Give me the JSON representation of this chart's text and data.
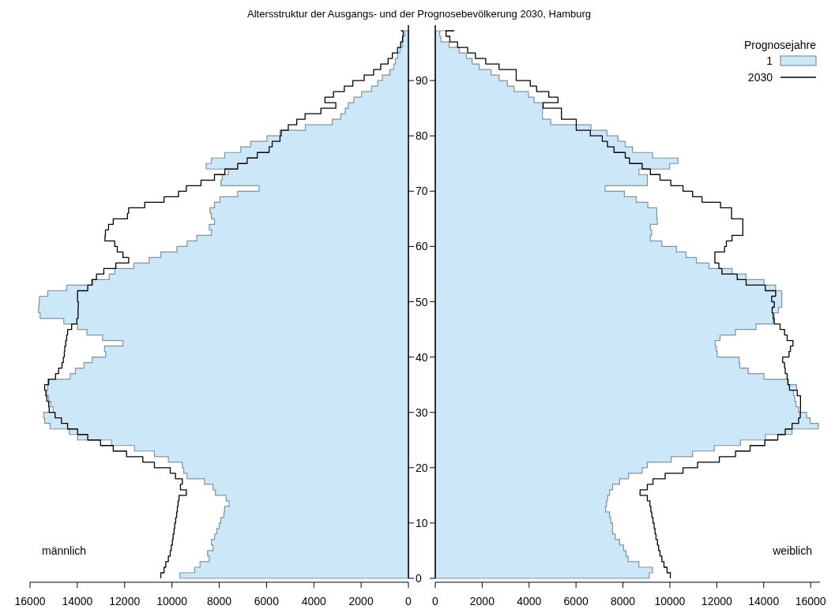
{
  "chart_data": [
    {
      "type": "area",
      "title": "Altersstruktur der Ausgangs- und der Prognosebevölkerung 2030, Hamburg",
      "orientation": "horizontal",
      "annotations": [
        "männlich"
      ],
      "x": [
        0,
        1,
        2,
        3,
        4,
        5,
        6,
        7,
        8,
        9,
        10,
        11,
        12,
        13,
        14,
        15,
        16,
        17,
        18,
        19,
        20,
        21,
        22,
        23,
        24,
        25,
        26,
        27,
        28,
        29,
        30,
        31,
        32,
        33,
        34,
        35,
        36,
        37,
        38,
        39,
        40,
        41,
        42,
        43,
        44,
        45,
        46,
        47,
        48,
        49,
        50,
        51,
        52,
        53,
        54,
        55,
        56,
        57,
        58,
        59,
        60,
        61,
        62,
        63,
        64,
        65,
        66,
        67,
        68,
        69,
        70,
        71,
        72,
        73,
        74,
        75,
        76,
        77,
        78,
        79,
        80,
        81,
        82,
        83,
        84,
        85,
        86,
        87,
        88,
        89,
        90,
        91,
        92,
        93,
        94,
        95,
        96,
        97,
        98,
        99
      ],
      "xlim": [
        16000,
        0
      ],
      "xticks": [
        16000,
        14000,
        12000,
        10000,
        8000,
        6000,
        4000,
        2000,
        0
      ],
      "ylim": [
        0,
        100
      ],
      "yticks": [
        0,
        10,
        20,
        30,
        40,
        50,
        60,
        70,
        80,
        90
      ],
      "series": [
        {
          "color": "#cce8f8",
          "values": [
            9660,
            9040,
            8810,
            8420,
            8490,
            8260,
            8330,
            8200,
            8100,
            8000,
            7930,
            7800,
            7770,
            7580,
            7710,
            8160,
            8260,
            8620,
            9360,
            9500,
            9560,
            10150,
            10740,
            11580,
            12550,
            13990,
            14340,
            15150,
            15380,
            15420,
            15020,
            15130,
            15210,
            15300,
            15250,
            15250,
            14300,
            14080,
            13720,
            13370,
            12800,
            12850,
            12070,
            12930,
            13590,
            13990,
            14570,
            15570,
            15640,
            15620,
            15600,
            15250,
            14450,
            13400,
            12650,
            12420,
            11610,
            10960,
            10470,
            9790,
            9360,
            8950,
            8330,
            8420,
            8200,
            8330,
            8390,
            8200,
            7970,
            7220,
            6310,
            7930,
            7870,
            7610,
            8550,
            8330,
            7770,
            7090,
            6670,
            5980,
            5430,
            4360,
            3220,
            2860,
            2670,
            2540,
            2310,
            1980,
            1560,
            1300,
            1100,
            780,
            620,
            550,
            460,
            360,
            260,
            230,
            150,
            120
          ]
        },
        {
          "type": "step",
          "color": "#000000",
          "values": [
            10470,
            10330,
            10260,
            10150,
            10070,
            10030,
            9980,
            9950,
            9910,
            9880,
            9840,
            9800,
            9770,
            9740,
            9700,
            9390,
            9640,
            9560,
            9850,
            10070,
            10740,
            11230,
            11920,
            12480,
            13020,
            13560,
            13990,
            14410,
            14670,
            14940,
            15190,
            15210,
            15290,
            15330,
            15380,
            15210,
            14920,
            14790,
            14650,
            14590,
            14550,
            14530,
            14490,
            14450,
            14410,
            14240,
            14020,
            13970,
            13970,
            13960,
            13990,
            13990,
            13560,
            13370,
            13190,
            12880,
            12370,
            11830,
            12070,
            12310,
            12420,
            12830,
            12810,
            12680,
            12480,
            11880,
            11830,
            11150,
            10330,
            9720,
            9390,
            8770,
            8200,
            7760,
            7220,
            6820,
            6390,
            5890,
            5760,
            5430,
            5380,
            5080,
            4720,
            4370,
            3700,
            3070,
            3530,
            3170,
            2710,
            2350,
            1870,
            1470,
            1170,
            860,
            680,
            460,
            330,
            250,
            220,
            320
          ]
        }
      ]
    },
    {
      "type": "area",
      "orientation": "horizontal",
      "annotations": [
        "weiblich"
      ],
      "legend": "top right",
      "legend_title": "Prognosejahre",
      "tick_labels": "x",
      "x": [
        0,
        1,
        2,
        3,
        4,
        5,
        6,
        7,
        8,
        9,
        10,
        11,
        12,
        13,
        14,
        15,
        16,
        17,
        18,
        19,
        20,
        21,
        22,
        23,
        24,
        25,
        26,
        27,
        28,
        29,
        30,
        31,
        32,
        33,
        34,
        35,
        36,
        37,
        38,
        39,
        40,
        41,
        42,
        43,
        44,
        45,
        46,
        47,
        48,
        49,
        50,
        51,
        52,
        53,
        54,
        55,
        56,
        57,
        58,
        59,
        60,
        61,
        62,
        63,
        64,
        65,
        66,
        67,
        68,
        69,
        70,
        71,
        72,
        73,
        74,
        75,
        76,
        77,
        78,
        79,
        80,
        81,
        82,
        83,
        84,
        85,
        86,
        87,
        88,
        89,
        90,
        91,
        92,
        93,
        94,
        95,
        96,
        97,
        98,
        99
      ],
      "xlim": [
        0,
        16400
      ],
      "xticks": [
        0,
        2000,
        4000,
        6000,
        8000,
        10000,
        12000,
        14000,
        16000
      ],
      "ylim": [
        0,
        100
      ],
      "yticks": [
        0,
        10,
        20,
        30,
        40,
        50,
        60,
        70,
        80,
        90
      ],
      "series": [
        {
          "name": "1",
          "color": "#cce8f8",
          "values": [
            9120,
            9260,
            8680,
            8220,
            8130,
            8030,
            7860,
            7670,
            7560,
            7560,
            7480,
            7430,
            7260,
            7300,
            7340,
            7430,
            7560,
            7860,
            8240,
            8820,
            9040,
            10060,
            10970,
            11890,
            13010,
            14070,
            15210,
            16330,
            15980,
            15830,
            15490,
            15380,
            15320,
            15270,
            15400,
            15050,
            14010,
            13340,
            12980,
            12950,
            12020,
            11980,
            11930,
            12140,
            12800,
            13670,
            14400,
            14450,
            14630,
            14770,
            14770,
            14770,
            14510,
            14010,
            13250,
            12650,
            11670,
            11130,
            10690,
            10280,
            9660,
            9170,
            9220,
            9170,
            9470,
            9440,
            9440,
            9060,
            8570,
            8060,
            7240,
            9040,
            9040,
            8680,
            9990,
            10350,
            9260,
            8410,
            8100,
            7790,
            7320,
            6640,
            4920,
            4570,
            4570,
            4570,
            4210,
            3970,
            3360,
            3070,
            2720,
            2380,
            1870,
            1570,
            1330,
            1020,
            590,
            240,
            190,
            510
          ]
        },
        {
          "type": "step",
          "name": "2030",
          "color": "#000000",
          "values": [
            10020,
            9880,
            9750,
            9660,
            9580,
            9520,
            9470,
            9410,
            9370,
            9330,
            9280,
            9230,
            9190,
            9150,
            9040,
            8730,
            9040,
            9280,
            9800,
            10560,
            11180,
            12110,
            12800,
            13420,
            14050,
            14600,
            14920,
            15210,
            15490,
            15560,
            15570,
            15570,
            15570,
            15430,
            15100,
            15030,
            15000,
            14920,
            14890,
            14810,
            15080,
            15140,
            15250,
            15000,
            14890,
            14700,
            14450,
            14400,
            14360,
            14450,
            14340,
            14510,
            14070,
            13250,
            12870,
            12220,
            12090,
            11920,
            11920,
            12330,
            12410,
            12650,
            13110,
            13110,
            13110,
            12630,
            12630,
            12160,
            11370,
            10970,
            10560,
            10040,
            9580,
            9170,
            8820,
            8280,
            8100,
            7620,
            7340,
            7120,
            6610,
            6010,
            6010,
            5380,
            5380,
            4600,
            5230,
            4840,
            4320,
            4050,
            3450,
            3450,
            2720,
            2150,
            1710,
            1380,
            950,
            620,
            460,
            810
          ]
        }
      ]
    }
  ]
}
